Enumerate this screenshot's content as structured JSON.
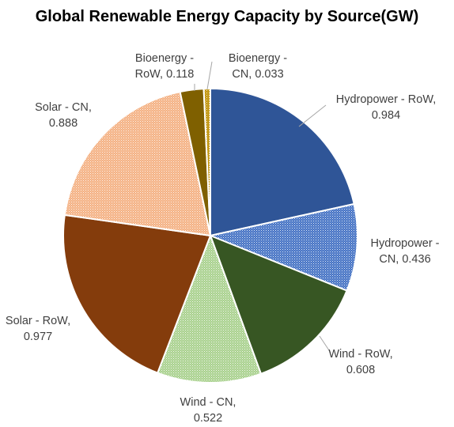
{
  "chart_data": {
    "type": "pie",
    "title": "Global Renewable Energy Capacity by Source(GW)",
    "slices": [
      {
        "label": "Hydropower - RoW",
        "value": 0.984,
        "value_text": "0.984",
        "color": "#2f5597",
        "pattern": "solid"
      },
      {
        "label": "Hydropower - CN",
        "value": 0.436,
        "value_text": "0.436",
        "color": "#4472c4",
        "pattern": "dots"
      },
      {
        "label": "Wind - RoW",
        "value": 0.608,
        "value_text": "0.608",
        "color": "#375623",
        "pattern": "solid"
      },
      {
        "label": "Wind - CN",
        "value": 0.522,
        "value_text": "0.522",
        "color": "#a9d18e",
        "pattern": "dots"
      },
      {
        "label": "Solar - RoW",
        "value": 0.977,
        "value_text": "0.977",
        "color": "#843c0c",
        "pattern": "solid"
      },
      {
        "label": "Solar - CN",
        "value": 0.888,
        "value_text": "0.888",
        "color": "#f4b183",
        "pattern": "dots"
      },
      {
        "label": "Bioenergy - RoW",
        "value": 0.118,
        "value_text": "0.118",
        "color": "#7f6000",
        "pattern": "solid"
      },
      {
        "label": "Bioenergy - CN",
        "value": 0.033,
        "value_text": "0.033",
        "color": "#bf9000",
        "pattern": "dots"
      }
    ],
    "legend": "none",
    "data_labels": "category name and value"
  }
}
